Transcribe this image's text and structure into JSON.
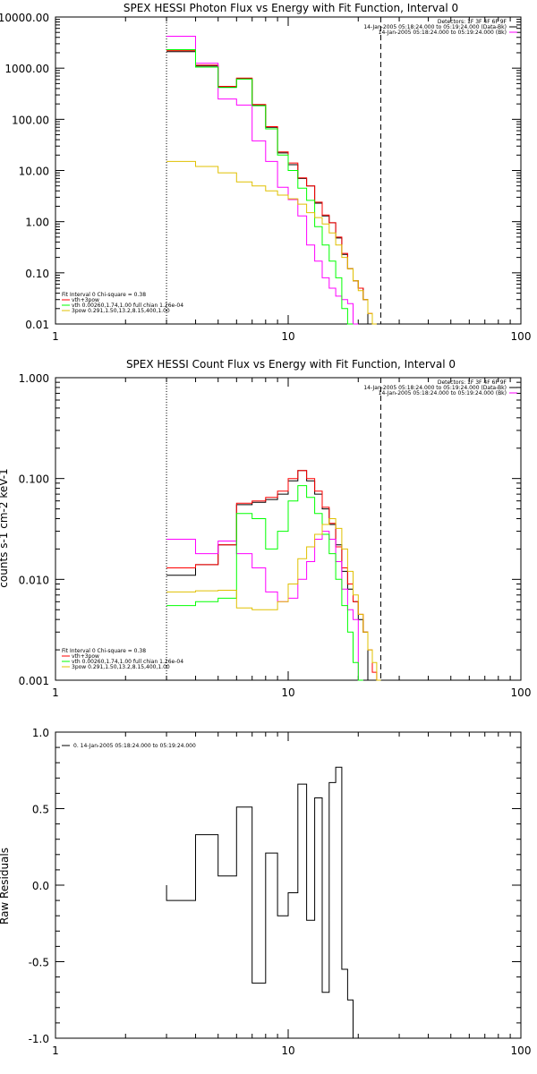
{
  "colors": {
    "black": "#000000",
    "red": "#ff0000",
    "magenta": "#ff00ff",
    "green": "#00ff00",
    "yellow": "#e0c000"
  },
  "chart_data": [
    {
      "type": "line",
      "title": "SPEX HESSI Photon Flux vs Energy with Fit Function, Interval 0",
      "xlabel": "",
      "ylabel": "",
      "xscale": "log",
      "yscale": "log",
      "xlim": [
        1,
        100
      ],
      "ylim": [
        0.01,
        10000
      ],
      "x_ticks": [
        "1",
        "10",
        "100"
      ],
      "y_ticks": [
        "0.01",
        "0.10",
        "1.00",
        "10.00",
        "100.00",
        "1000.00",
        "10000.00"
      ],
      "vlines": {
        "dotted": 3,
        "dashed": 25
      },
      "info_lines": [
        "Detectors: 1F 3F 4F 6F 9F",
        "14-Jan-2005 05:18:24.000 to 05:19:24.000 (Data-Bk)",
        "14-Jan-2005 05:18:24.000 to 05:19:24.000 (Bk)"
      ],
      "legend": [
        "Fit Interval 0   Chi-square = 0.38",
        "vth+3pow",
        "vth 0.00260,1.74,1.00  full chian 1.26e-04",
        "3pow 0.291,1.50,13.2,8.15,400,1.00"
      ],
      "x_edges": [
        3,
        4,
        5,
        6,
        7,
        8,
        9,
        10,
        11,
        12,
        13,
        14,
        15,
        16,
        17,
        18,
        19,
        20,
        21,
        22,
        23,
        24,
        25,
        26,
        27,
        28,
        29,
        30,
        31
      ],
      "series": [
        {
          "name": "14-Jan-2005 05:18:24.000 to 05:19:24.000 (Data-Bk)",
          "color": "black",
          "values": [
            2100,
            1100,
            430,
            620,
            190,
            70,
            22,
            13,
            7,
            5,
            2.3,
            1.3,
            0.95,
            0.48,
            0.23,
            0.12,
            0.07,
            0.05,
            0.03
          ]
        },
        {
          "name": "vth+3pow",
          "color": "red",
          "values": [
            2200,
            1150,
            440,
            640,
            195,
            72,
            23,
            14,
            7.2,
            5,
            2.4,
            1.35,
            0.95,
            0.5,
            0.24,
            0.12,
            0.07,
            0.05,
            0.03,
            0.016,
            0.01
          ]
        },
        {
          "name": "14-Jan-2005 05:18:24.000 to 05:19:24.000 (Bk)",
          "color": "magenta",
          "values": [
            4200,
            1250,
            250,
            190,
            38,
            15,
            4.7,
            2.7,
            1.3,
            0.35,
            0.17,
            0.08,
            0.05,
            0.035,
            0.03,
            0.025,
            0.01
          ]
        },
        {
          "name": "vth 0.00260,1.74,1.00  full chian 1.26e-04",
          "color": "green",
          "values": [
            2300,
            1050,
            420,
            610,
            185,
            65,
            20,
            10,
            4.5,
            2.6,
            0.8,
            0.35,
            0.17,
            0.08,
            0.02,
            0.01
          ]
        },
        {
          "name": "3pow 0.291,1.50,13.2,8.15,400,1.00",
          "color": "yellow",
          "values": [
            15,
            12,
            9,
            6,
            5,
            4,
            3.3,
            2.8,
            2.2,
            1.5,
            1.2,
            0.9,
            0.6,
            0.35,
            0.2,
            0.12,
            0.07,
            0.045,
            0.03,
            0.016,
            0.01
          ]
        }
      ]
    },
    {
      "type": "line",
      "title": "SPEX HESSI Count Flux vs Energy with Fit Function, Interval 0",
      "xlabel": "",
      "ylabel": "counts s-1 cm-2 keV-1",
      "xscale": "log",
      "yscale": "log",
      "xlim": [
        1,
        100
      ],
      "ylim": [
        0.001,
        1
      ],
      "x_ticks": [
        "1",
        "10",
        "100"
      ],
      "y_ticks": [
        "0.001",
        "0.010",
        "0.100",
        "1.000"
      ],
      "vlines": {
        "dotted": 3,
        "dashed": 25
      },
      "info_lines": [
        "Detectors: 1F 3F 4F 6F 9F",
        "14-Jan-2005 05:18:24.000 to 05:19:24.000 (Data-Bk)",
        "14-Jan-2005 05:18:24.000 to 05:19:24.000 (Bk)"
      ],
      "legend": [
        "Fit Interval 0   Chi-square = 0.38",
        "vth+3pow",
        "vth 0.00260,1.74,1.00  full chian 1.26e-04",
        "3pow 0.291,1.50,13.2,8.15,400,1.00"
      ],
      "x_edges": [
        3,
        4,
        5,
        6,
        7,
        8,
        9,
        10,
        11,
        12,
        13,
        14,
        15,
        16,
        17,
        18,
        19,
        20,
        21,
        22,
        23,
        24,
        25,
        26,
        27,
        28,
        29,
        30,
        31
      ],
      "series": [
        {
          "name": "14-Jan-2005 05:18:24.000 to 05:19:24.000 (Data-Bk)",
          "color": "black",
          "values": [
            0.011,
            0.014,
            0.022,
            0.055,
            0.058,
            0.062,
            0.07,
            0.095,
            0.12,
            0.095,
            0.07,
            0.05,
            0.035,
            0.022,
            0.012,
            0.008,
            0.006,
            0.004,
            0.003
          ]
        },
        {
          "name": "vth+3pow",
          "color": "red",
          "values": [
            0.013,
            0.014,
            0.022,
            0.057,
            0.06,
            0.065,
            0.075,
            0.1,
            0.12,
            0.1,
            0.075,
            0.052,
            0.036,
            0.021,
            0.013,
            0.009,
            0.006,
            0.0045,
            0.003,
            0.002,
            0.0012
          ]
        },
        {
          "name": "14-Jan-2005 05:18:24.000 to 05:19:24.000 (Bk)",
          "color": "magenta",
          "values": [
            0.025,
            0.018,
            0.024,
            0.018,
            0.013,
            0.0075,
            0.006,
            0.0065,
            0.01,
            0.015,
            0.025,
            0.03,
            0.025,
            0.015,
            0.008,
            0.005,
            0.004,
            0.001
          ]
        },
        {
          "name": "vth 0.00260,1.74,1.00  full chian 1.26e-04",
          "color": "green",
          "values": [
            0.0055,
            0.006,
            0.0065,
            0.045,
            0.04,
            0.02,
            0.03,
            0.06,
            0.085,
            0.065,
            0.045,
            0.028,
            0.018,
            0.01,
            0.0055,
            0.003,
            0.0015,
            0.001
          ]
        },
        {
          "name": "3pow 0.291,1.50,13.2,8.15,400,1.00",
          "color": "yellow",
          "values": [
            0.0075,
            0.0077,
            0.0078,
            0.0052,
            0.005,
            0.005,
            0.006,
            0.009,
            0.016,
            0.021,
            0.028,
            0.035,
            0.04,
            0.032,
            0.02,
            0.012,
            0.007,
            0.0045,
            0.003,
            0.002,
            0.0015,
            0.001
          ]
        }
      ]
    },
    {
      "type": "line",
      "title": "",
      "xlabel": "",
      "ylabel": "Raw Residuals",
      "xscale": "log",
      "yscale": "linear",
      "xlim": [
        1,
        100
      ],
      "ylim": [
        -1,
        1
      ],
      "x_ticks": [
        "1",
        "10",
        "100"
      ],
      "y_ticks": [
        "-1.0",
        "-0.5",
        "0.0",
        "0.5",
        "1.0"
      ],
      "legend": [
        "0. 14-Jan-2005 05:18:24.000 to 05:19:24.000"
      ],
      "x_edges": [
        3,
        4,
        5,
        6,
        7,
        8,
        9,
        10,
        11,
        12,
        13,
        14,
        15,
        16,
        17,
        18,
        19,
        20,
        21,
        22,
        23,
        24,
        25
      ],
      "series": [
        {
          "name": "0. 14-Jan-2005 05:18:24.000 to 05:19:24.000",
          "color": "black",
          "values": [
            -0.1,
            0.33,
            0.06,
            0.51,
            -0.64,
            0.21,
            -0.2,
            -0.05,
            0.66,
            -0.23,
            0.57,
            -0.7,
            0.67,
            0.77,
            -0.55,
            -0.75
          ]
        }
      ]
    }
  ]
}
